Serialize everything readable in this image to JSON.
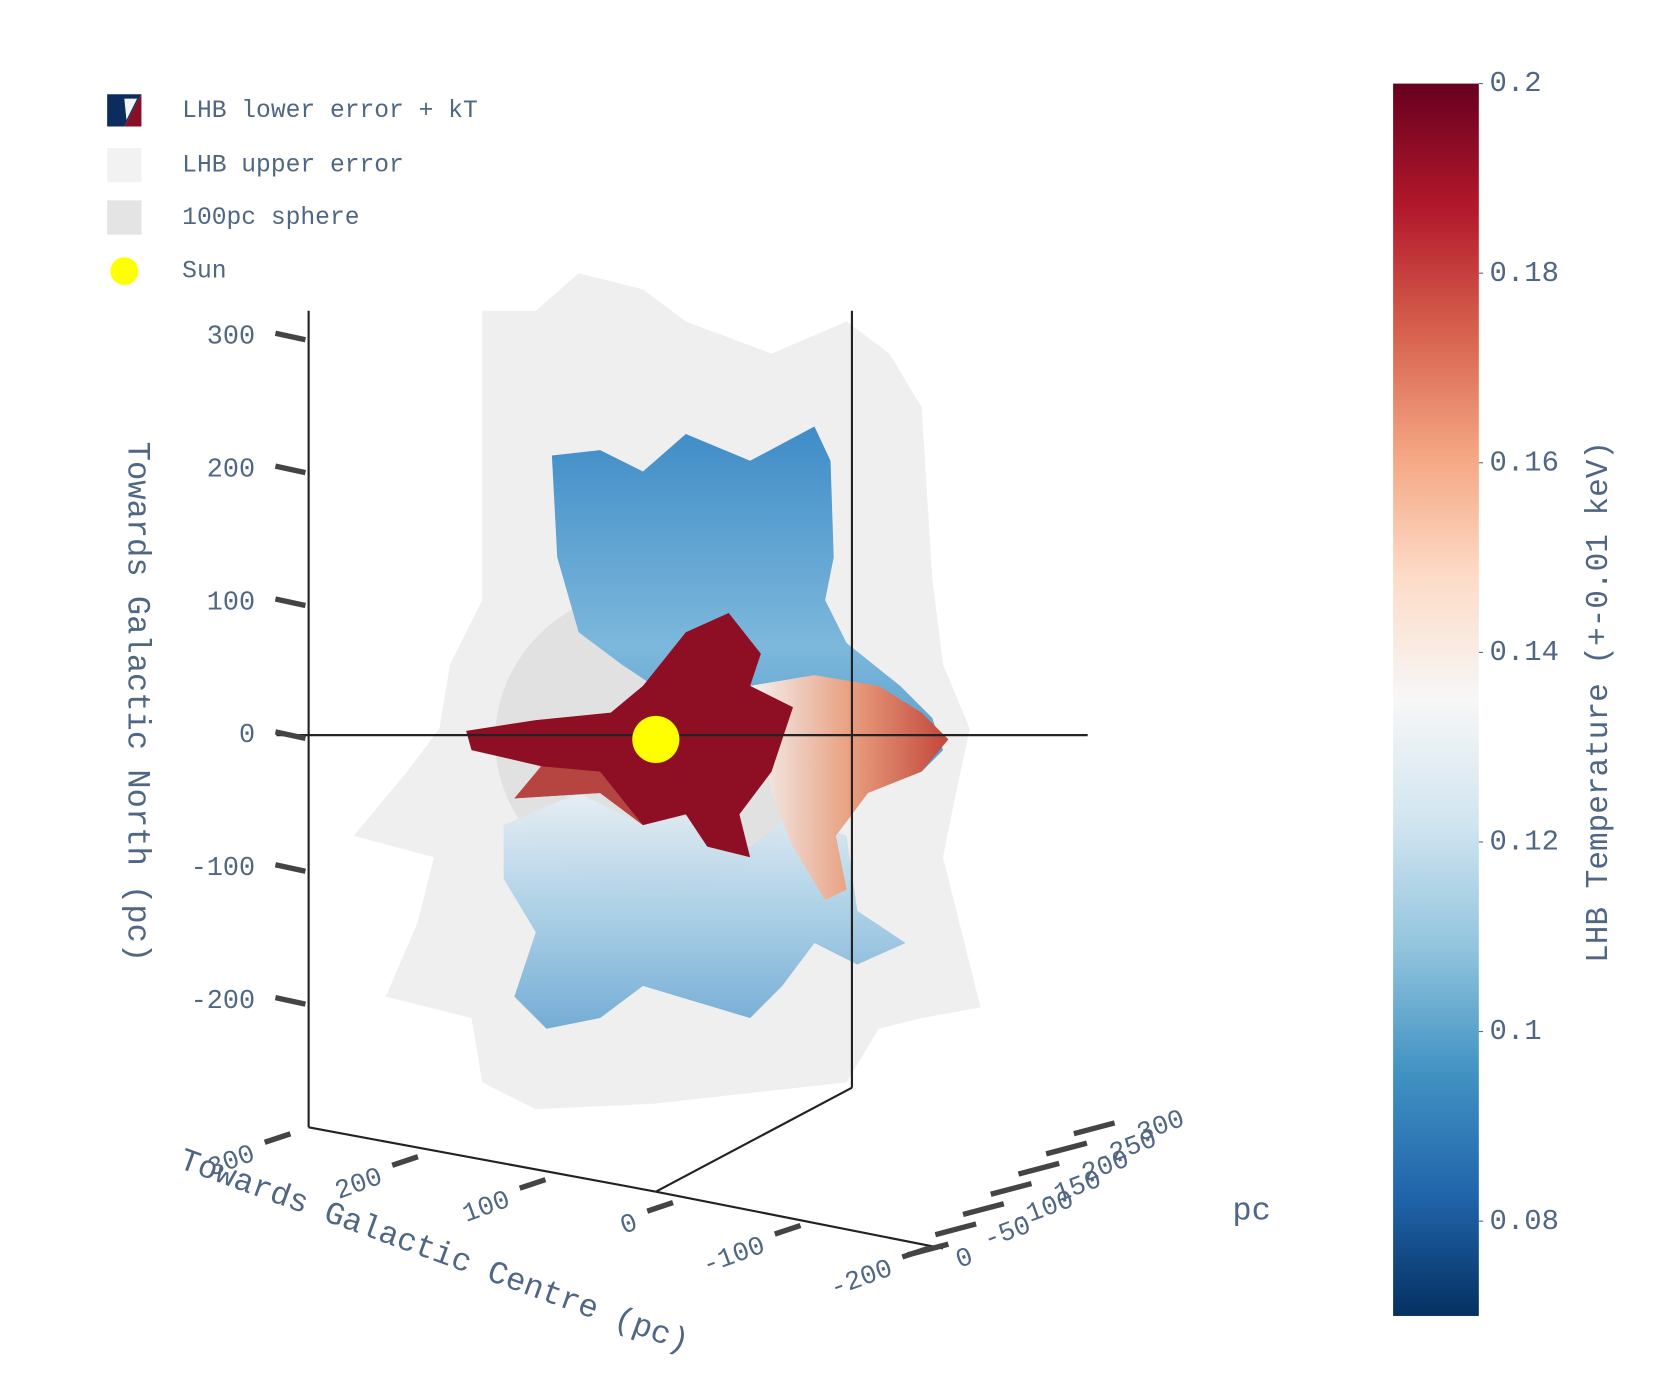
{
  "chart_data": {
    "type": "surface3d",
    "series": [
      {
        "name": "LHB lower error + kT"
      },
      {
        "name": "LHB upper error",
        "color": "#f2f2f2"
      },
      {
        "name": "100pc sphere",
        "color": "#e4e4e4"
      },
      {
        "name": "Sun",
        "color": "#ffff00",
        "x": [
          0
        ],
        "y": [
          0
        ],
        "z": [
          0
        ]
      }
    ],
    "xaxis_title": "Towards Galactic Centre (pc)",
    "xlim": [
      -200,
      300
    ],
    "xticks": [
      300,
      200,
      100,
      0,
      -100,
      -200
    ],
    "yaxis_title": "pc",
    "ylim": [
      -300,
      0
    ],
    "yticks": [
      -300,
      -250,
      -200,
      -150,
      -100,
      -50,
      0
    ],
    "zaxis_title": "Towards Galactic North (pc)",
    "zlim": [
      -300,
      300
    ],
    "zticks": [
      300,
      200,
      100,
      0,
      -100,
      -200
    ],
    "colorbar": {
      "title": "LHB Temperature (+-0.01 keV)",
      "lim": [
        0.07,
        0.2
      ],
      "ticks": [
        0.08,
        0.1,
        0.12,
        0.14,
        0.16,
        0.18,
        0.2
      ],
      "colorscale": [
        "#053061",
        "#2166ac",
        "#4393c3",
        "#92c5de",
        "#d1e5f0",
        "#f7f7f7",
        "#fddbc7",
        "#f4a582",
        "#d6604d",
        "#b2182b",
        "#67001f"
      ]
    }
  }
}
